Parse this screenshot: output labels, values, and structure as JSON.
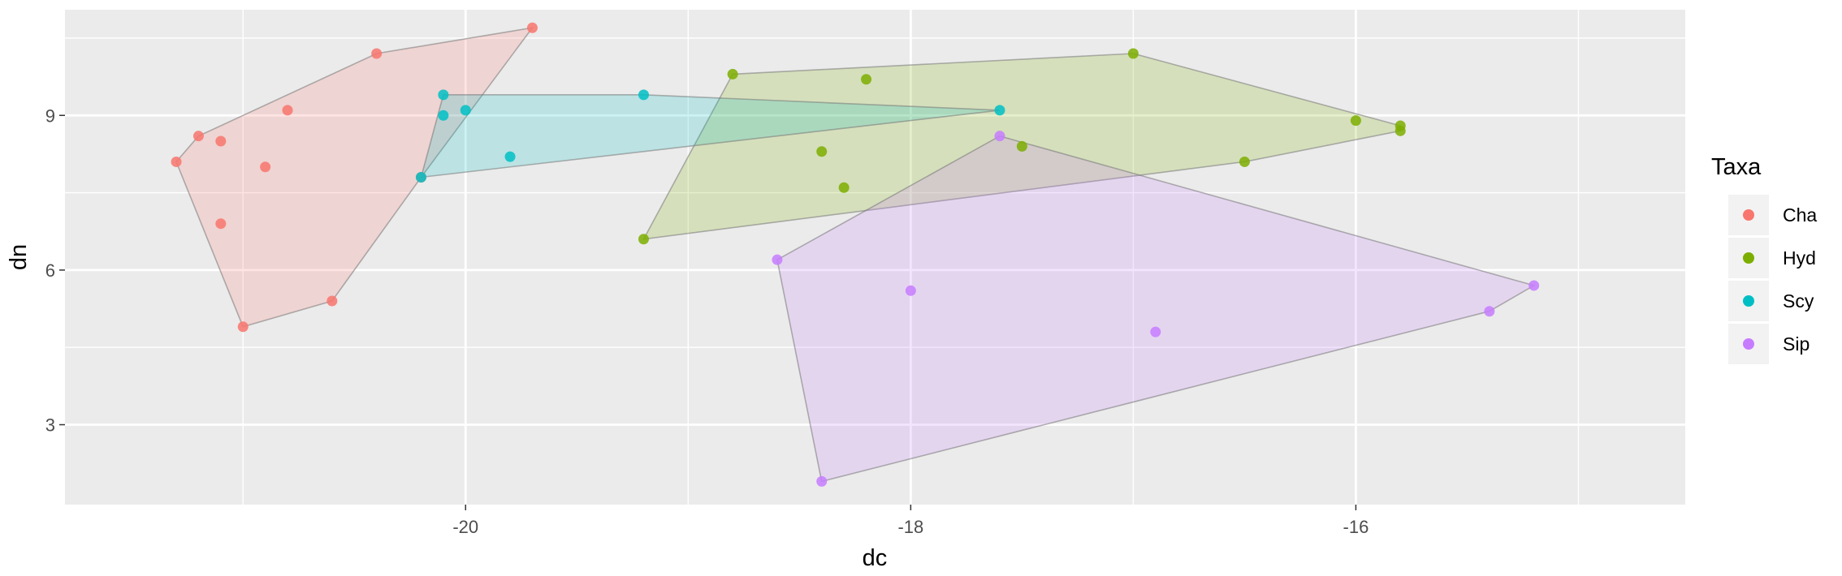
{
  "chart_data": {
    "type": "scatter",
    "xlabel": "dc",
    "ylabel": "dn",
    "xlim": [
      -21.8,
      -14.52
    ],
    "ylim": [
      1.45,
      11.05
    ],
    "x_ticks": [
      -20,
      -18,
      -16
    ],
    "x_minor_ticks": [
      -21,
      -19,
      -17,
      -15
    ],
    "y_ticks": [
      3,
      6,
      9
    ],
    "y_minor_ticks": [
      4.5,
      7.5,
      10.5
    ],
    "x_tick_labels": [
      "-20",
      "-18",
      "-16"
    ],
    "y_tick_labels": [
      "3",
      "6",
      "9"
    ],
    "grid": true,
    "panel_background": "#EBEBEB",
    "legend": {
      "title": "Taxa",
      "position": "right",
      "entries": [
        "Cha",
        "Hyd",
        "Scy",
        "Sip"
      ]
    },
    "hulls": true,
    "series": [
      {
        "name": "Cha",
        "color": "#F8766D",
        "points": [
          [
            -21.3,
            8.1
          ],
          [
            -21.2,
            8.6
          ],
          [
            -21.1,
            8.5
          ],
          [
            -21.1,
            6.9
          ],
          [
            -20.9,
            8.0
          ],
          [
            -20.8,
            9.1
          ],
          [
            -21.0,
            4.9
          ],
          [
            -20.6,
            5.4
          ],
          [
            -20.4,
            10.2
          ],
          [
            -19.7,
            10.7
          ],
          [
            -20.2,
            7.8
          ]
        ],
        "hull": [
          [
            -21.3,
            8.1
          ],
          [
            -21.2,
            8.6
          ],
          [
            -20.4,
            10.2
          ],
          [
            -19.7,
            10.7
          ],
          [
            -20.2,
            7.8
          ],
          [
            -20.6,
            5.4
          ],
          [
            -21.0,
            4.9
          ]
        ]
      },
      {
        "name": "Hyd",
        "color": "#7CAE00",
        "points": [
          [
            -18.8,
            9.8
          ],
          [
            -18.2,
            9.7
          ],
          [
            -18.4,
            8.3
          ],
          [
            -18.3,
            7.6
          ],
          [
            -19.2,
            6.6
          ],
          [
            -17.0,
            10.2
          ],
          [
            -17.5,
            8.4
          ],
          [
            -16.5,
            8.1
          ],
          [
            -16.0,
            8.9
          ],
          [
            -15.8,
            8.8
          ],
          [
            -15.8,
            8.7
          ]
        ],
        "hull": [
          [
            -19.2,
            6.6
          ],
          [
            -18.8,
            9.8
          ],
          [
            -17.0,
            10.2
          ],
          [
            -15.8,
            8.8
          ],
          [
            -15.8,
            8.7
          ],
          [
            -16.5,
            8.1
          ]
        ]
      },
      {
        "name": "Scy",
        "color": "#00BFC4",
        "points": [
          [
            -20.1,
            9.4
          ],
          [
            -20.1,
            9.0
          ],
          [
            -20.0,
            9.1
          ],
          [
            -19.8,
            8.2
          ],
          [
            -20.2,
            7.8
          ],
          [
            -19.2,
            9.4
          ],
          [
            -17.6,
            9.1
          ]
        ],
        "hull": [
          [
            -20.2,
            7.8
          ],
          [
            -20.1,
            9.4
          ],
          [
            -19.2,
            9.4
          ],
          [
            -17.6,
            9.1
          ]
        ]
      },
      {
        "name": "Sip",
        "color": "#C77CFF",
        "points": [
          [
            -18.6,
            6.2
          ],
          [
            -17.6,
            8.6
          ],
          [
            -18.0,
            5.6
          ],
          [
            -16.9,
            4.8
          ],
          [
            -18.4,
            1.9
          ],
          [
            -15.4,
            5.2
          ],
          [
            -15.2,
            5.7
          ]
        ],
        "hull": [
          [
            -18.6,
            6.2
          ],
          [
            -17.6,
            8.6
          ],
          [
            -15.2,
            5.7
          ],
          [
            -15.4,
            5.2
          ],
          [
            -18.4,
            1.9
          ]
        ]
      }
    ]
  }
}
